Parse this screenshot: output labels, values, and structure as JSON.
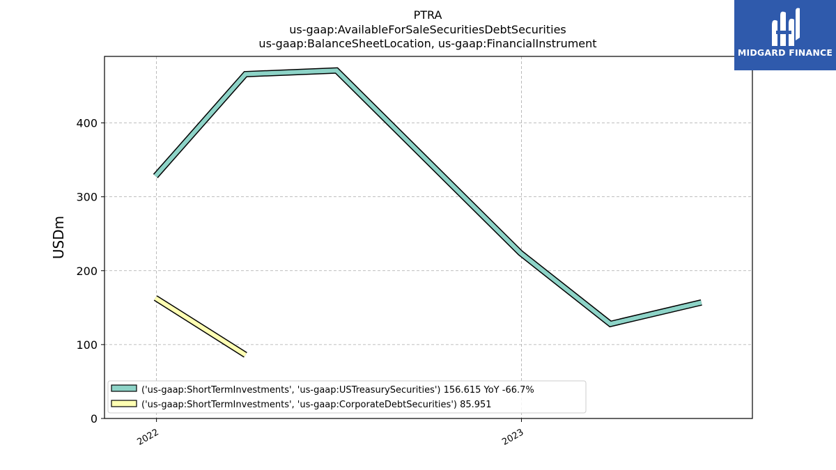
{
  "logo": {
    "text": "MIDGARD FINANCE",
    "bg_color": "#2f5aac"
  },
  "chart_data": {
    "type": "line",
    "title": "PTRA",
    "subtitle_lines": [
      "us-gaap:AvailableForSaleSecuritiesDebtSecurities",
      "us-gaap:BalanceSheetLocation, us-gaap:FinancialInstrument"
    ],
    "ylabel": "USDm",
    "xlabel": "",
    "ylim": [
      0,
      490
    ],
    "yticks": [
      0,
      100,
      200,
      300,
      400
    ],
    "xlim": [
      "2021-11-10",
      "2023-08-20"
    ],
    "xticks": [
      {
        "label": "2022",
        "date": "2022-01-01"
      },
      {
        "label": "2023",
        "date": "2023-01-01"
      }
    ],
    "grid": true,
    "legend_position": "lower-left",
    "series": [
      {
        "name": "('us-gaap:ShortTermInvestments', 'us-gaap:USTreasurySecuritiesMember') 156.615 YoY -66.7%",
        "display_name": "('us-gaap:ShortTermInvestments', 'us-gaap:USTreasurySecurities') 156.615 YoY -66.7%",
        "color": "#8dd3c7",
        "x": [
          "2021-12-31",
          "2022-03-31",
          "2022-06-30",
          "2022-12-31",
          "2023-03-31",
          "2023-06-30"
        ],
        "y": [
          328,
          466,
          471,
          224,
          128,
          157
        ]
      },
      {
        "name": "('us-gaap:ShortTermInvestments', 'us-gaap:CorporateDebtSecurities') 85.951",
        "display_name": "('us-gaap:ShortTermInvestments', 'us-gaap:CorporateDebtSecurities') 85.951",
        "color": "#ffffb3",
        "x": [
          "2021-12-31",
          "2022-03-31"
        ],
        "y": [
          163,
          86
        ]
      }
    ]
  }
}
